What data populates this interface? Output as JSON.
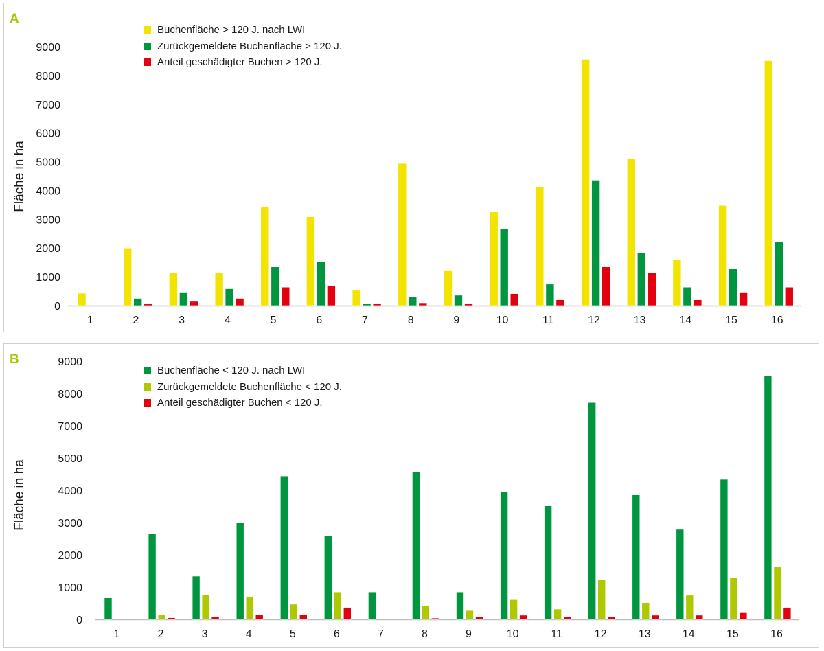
{
  "colors": {
    "yellow": "#f2e400",
    "green": "#009640",
    "light_green": "#b0c800",
    "red": "#e3000f",
    "panel_letter": "#a7c70a",
    "axis": "#bdbdbd"
  },
  "chart_data": [
    {
      "id": "A",
      "panel_label": "A",
      "type": "bar",
      "title": "",
      "xlabel": "",
      "ylabel": "Fläche in ha",
      "ylim": [
        0,
        9000
      ],
      "y_tick_labels": [
        "0",
        "1000",
        "2000",
        "3000",
        "4000",
        "5000",
        "6000",
        "7000",
        "8000",
        "9000"
      ],
      "y_tick_values": [
        0,
        1000,
        2000,
        3000,
        4000,
        5000,
        6000,
        7000,
        8000,
        9000
      ],
      "grid": false,
      "legend_position": "top-left",
      "categories": [
        "1",
        "2",
        "3",
        "4",
        "5",
        "6",
        "7",
        "8",
        "9",
        "10",
        "11",
        "12",
        "13",
        "14",
        "15",
        "16"
      ],
      "series": [
        {
          "name": "Buchenfläche > 120 J. nach LWI",
          "color": "#f2e400",
          "values": [
            430,
            2000,
            1130,
            1130,
            3420,
            3090,
            530,
            4940,
            1230,
            3260,
            4130,
            8560,
            5110,
            1610,
            3480,
            8510
          ]
        },
        {
          "name": "Zurückgemeldete Buchenfläche > 120 J.",
          "color": "#009640",
          "values": [
            0,
            250,
            465,
            585,
            1345,
            1510,
            55,
            310,
            360,
            2660,
            745,
            4360,
            1840,
            640,
            1295,
            2215
          ]
        },
        {
          "name": "Anteil geschädigter Buchen > 120 J.",
          "color": "#e3000f",
          "values": [
            0,
            55,
            145,
            250,
            640,
            690,
            55,
            95,
            55,
            415,
            200,
            1345,
            1130,
            200,
            465,
            640
          ]
        }
      ]
    },
    {
      "id": "B",
      "panel_label": "B",
      "type": "bar",
      "title": "",
      "xlabel": "",
      "ylabel": "Fläche in ha",
      "ylim": [
        0,
        9000
      ],
      "y_tick_labels": [
        "0",
        "1000",
        "2000",
        "3000",
        "4000",
        "5000",
        "7000",
        "8000",
        "9000"
      ],
      "y_tick_values": [
        0,
        1000,
        2000,
        3000,
        4000,
        5000,
        7000,
        8000,
        9000
      ],
      "grid": false,
      "legend_position": "top-left",
      "categories": [
        "1",
        "2",
        "3",
        "4",
        "5",
        "6",
        "7",
        "8",
        "9",
        "10",
        "11",
        "12",
        "13",
        "14",
        "15",
        "16"
      ],
      "series": [
        {
          "name": "Buchenfläche < 120 J. nach LWI",
          "color": "#009640",
          "values": [
            665,
            2650,
            1340,
            2985,
            4445,
            2600,
            850,
            4580,
            850,
            3950,
            3520,
            7720,
            3860,
            2790,
            4340,
            8540
          ]
        },
        {
          "name": "Zurückgemeldete Buchenfläche < 120 J.",
          "color": "#b0c800",
          "values": [
            0,
            135,
            760,
            710,
            470,
            850,
            0,
            420,
            275,
            610,
            320,
            1235,
            520,
            750,
            1290,
            1625
          ]
        },
        {
          "name": "Anteil geschädigter Buchen < 120 J.",
          "color": "#e3000f",
          "values": [
            0,
            50,
            85,
            135,
            135,
            370,
            0,
            40,
            80,
            130,
            80,
            80,
            130,
            130,
            225,
            370
          ]
        }
      ]
    }
  ]
}
